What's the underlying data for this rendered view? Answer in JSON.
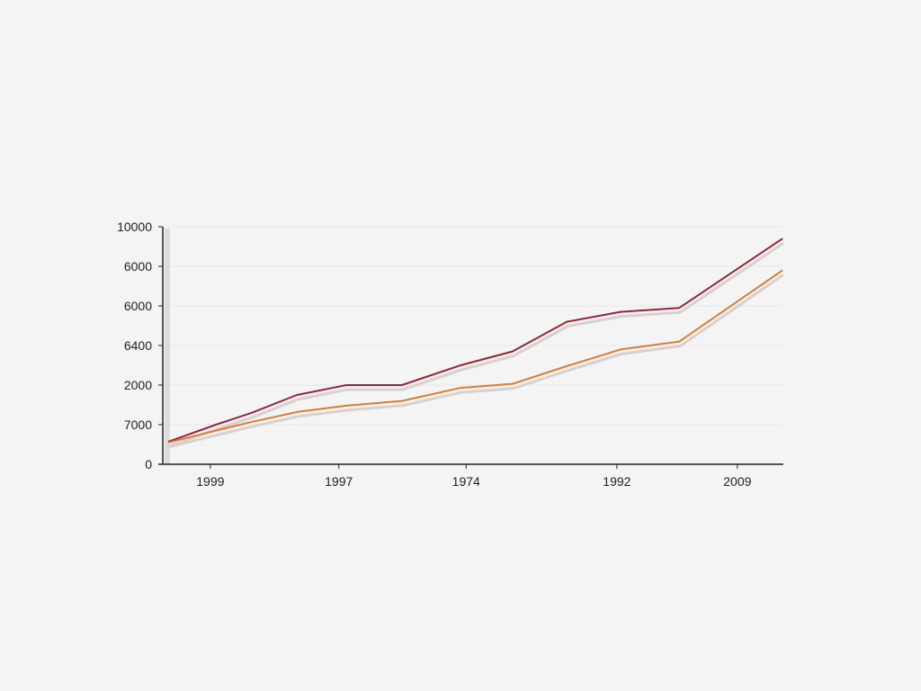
{
  "chart_data": {
    "type": "line",
    "title": "",
    "xlabel": "",
    "ylabel": "",
    "grid": true,
    "legend": "none",
    "xlim": [
      0,
      100
    ],
    "ylim": [
      0,
      6
    ],
    "x_ticks": [
      {
        "label": "1999",
        "x": 7.4
      },
      {
        "label": "1997",
        "x": 28.2
      },
      {
        "label": "1974",
        "x": 48.8
      },
      {
        "label": "1992",
        "x": 73.2
      },
      {
        "label": "2009",
        "x": 92.7
      }
    ],
    "y_ticks": [
      {
        "label": "0",
        "y": 0
      },
      {
        "label": "7000",
        "y": 1
      },
      {
        "label": "2000",
        "y": 2
      },
      {
        "label": "6400",
        "y": 3
      },
      {
        "label": "6000",
        "y": 4
      },
      {
        "label": "6000",
        "y": 5
      },
      {
        "label": "10000",
        "y": 6
      }
    ],
    "x": [
      0.6,
      8.3,
      14.1,
      21.4,
      29.4,
      38.4,
      47.9,
      56.3,
      65.1,
      73.8,
      83.3,
      100
    ],
    "series": [
      {
        "color": "#9b2335",
        "values": [
          0.57,
          1.0,
          1.3,
          1.75,
          2.0,
          2.0,
          2.5,
          2.85,
          3.6,
          3.85,
          3.95,
          5.7
        ]
      },
      {
        "color": "#e07a2e",
        "values": [
          0.55,
          0.85,
          1.07,
          1.32,
          1.48,
          1.6,
          1.93,
          2.03,
          2.48,
          2.9,
          3.1,
          4.9
        ]
      }
    ]
  }
}
